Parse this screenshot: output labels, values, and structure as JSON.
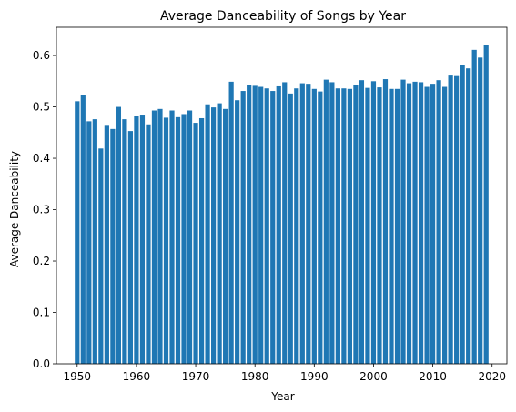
{
  "chart_data": {
    "type": "bar",
    "title": "Average Danceability of Songs by Year",
    "xlabel": "Year",
    "ylabel": "Average Danceability",
    "xlim": [
      1946.5,
      2022.5
    ],
    "ylim": [
      0,
      0.655
    ],
    "xticks": [
      1950,
      1960,
      1970,
      1980,
      1990,
      2000,
      2010,
      2020
    ],
    "yticks": [
      0.0,
      0.1,
      0.2,
      0.3,
      0.4,
      0.5,
      0.6
    ],
    "grid": false,
    "legend": "none",
    "bar_color": "#1f77b4",
    "x": [
      1950,
      1951,
      1952,
      1953,
      1954,
      1955,
      1956,
      1957,
      1958,
      1959,
      1960,
      1961,
      1962,
      1963,
      1964,
      1965,
      1966,
      1967,
      1968,
      1969,
      1970,
      1971,
      1972,
      1973,
      1974,
      1975,
      1976,
      1977,
      1978,
      1979,
      1980,
      1981,
      1982,
      1983,
      1984,
      1985,
      1986,
      1987,
      1988,
      1989,
      1990,
      1991,
      1992,
      1993,
      1994,
      1995,
      1996,
      1997,
      1998,
      1999,
      2000,
      2001,
      2002,
      2003,
      2004,
      2005,
      2006,
      2007,
      2008,
      2009,
      2010,
      2011,
      2012,
      2013,
      2014,
      2015,
      2016,
      2017,
      2018,
      2019
    ],
    "values": [
      0.511,
      0.524,
      0.472,
      0.476,
      0.419,
      0.465,
      0.457,
      0.5,
      0.476,
      0.453,
      0.482,
      0.485,
      0.466,
      0.493,
      0.496,
      0.479,
      0.493,
      0.48,
      0.486,
      0.493,
      0.469,
      0.478,
      0.505,
      0.499,
      0.507,
      0.496,
      0.549,
      0.513,
      0.531,
      0.543,
      0.541,
      0.539,
      0.536,
      0.531,
      0.54,
      0.548,
      0.526,
      0.536,
      0.546,
      0.545,
      0.535,
      0.53,
      0.553,
      0.548,
      0.536,
      0.536,
      0.535,
      0.543,
      0.552,
      0.537,
      0.55,
      0.538,
      0.554,
      0.535,
      0.535,
      0.553,
      0.546,
      0.549,
      0.548,
      0.539,
      0.545,
      0.552,
      0.539,
      0.561,
      0.56,
      0.582,
      0.575,
      0.611,
      0.596,
      0.621
    ]
  }
}
